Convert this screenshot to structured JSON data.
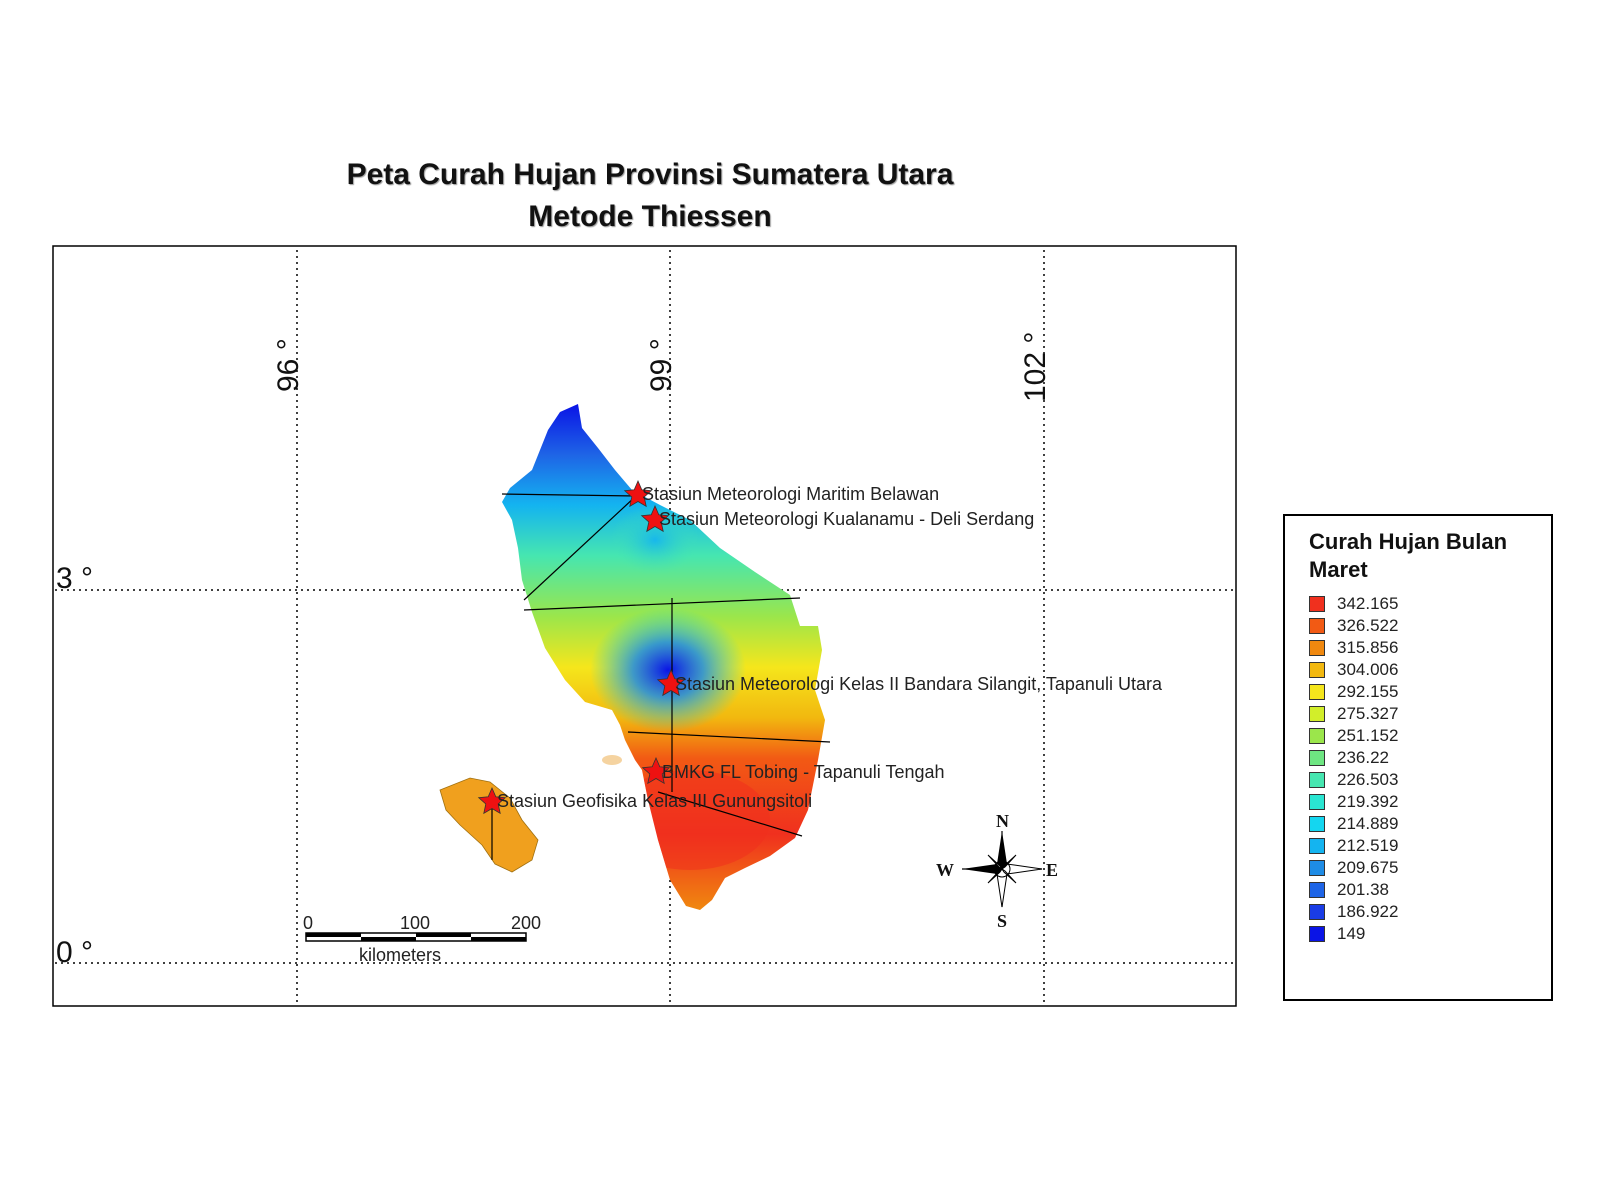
{
  "title": {
    "line1": "Peta Curah Hujan Provinsi Sumatera Utara",
    "line2": "Metode Thiessen"
  },
  "grid": {
    "longitudes": [
      "96 °",
      "99 °",
      "102 °"
    ],
    "latitudes": [
      "3 °",
      "0 °"
    ]
  },
  "stations": [
    {
      "name": "Stasiun Meteorologi Maritim Belawan"
    },
    {
      "name": "Stasiun Meteorologi Kualanamu - Deli Serdang"
    },
    {
      "name": "Stasiun Meteorologi Kelas II Bandara Silangit, Tapanuli Utara"
    },
    {
      "name": "BMKG FL Tobing - Tapanuli Tengah"
    },
    {
      "name": "Stasiun Geofisika Kelas III Gunungsitoli"
    }
  ],
  "scale_bar": {
    "ticks": [
      "0",
      "100",
      "200"
    ],
    "unit": "kilometers"
  },
  "compass": {
    "n": "N",
    "s": "S",
    "e": "E",
    "w": "W"
  },
  "legend": {
    "title": "Curah Hujan Bulan Maret",
    "items": [
      {
        "label": "342.165",
        "color": "#f0301e"
      },
      {
        "label": "326.522",
        "color": "#f25a14"
      },
      {
        "label": "315.856",
        "color": "#f0880f"
      },
      {
        "label": "304.006",
        "color": "#f2b80f"
      },
      {
        "label": "292.155",
        "color": "#f5e61c"
      },
      {
        "label": "275.327",
        "color": "#d2ee2a"
      },
      {
        "label": "251.152",
        "color": "#9be64b"
      },
      {
        "label": "236.22",
        "color": "#6ee682"
      },
      {
        "label": "226.503",
        "color": "#46e6b0"
      },
      {
        "label": "219.392",
        "color": "#2ae6d2"
      },
      {
        "label": "214.889",
        "color": "#14d6f0"
      },
      {
        "label": "212.519",
        "color": "#14b4f0"
      },
      {
        "label": "209.675",
        "color": "#1e8ce6"
      },
      {
        "label": "201.38",
        "color": "#1e64e6"
      },
      {
        "label": "186.922",
        "color": "#1a3ce6"
      },
      {
        "label": "149",
        "color": "#0a14e6"
      }
    ]
  }
}
